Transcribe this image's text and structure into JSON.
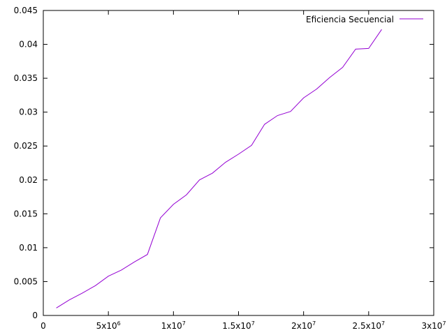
{
  "chart_data": {
    "type": "line",
    "title": "",
    "xlabel": "",
    "ylabel": "",
    "xlim": [
      0,
      30000000
    ],
    "ylim": [
      0,
      0.045
    ],
    "grid": false,
    "legend_position": "top-right",
    "x_ticks": [
      {
        "value": 0,
        "label": "0",
        "mantissa": "0",
        "exp": ""
      },
      {
        "value": 5000000,
        "label": "5x10^6",
        "mantissa": "5x10",
        "exp": "6"
      },
      {
        "value": 10000000,
        "label": "1x10^7",
        "mantissa": "1x10",
        "exp": "7"
      },
      {
        "value": 15000000,
        "label": "1.5x10^7",
        "mantissa": "1.5x10",
        "exp": "7"
      },
      {
        "value": 20000000,
        "label": "2x10^7",
        "mantissa": "2x10",
        "exp": "7"
      },
      {
        "value": 25000000,
        "label": "2.5x10^7",
        "mantissa": "2.5x10",
        "exp": "7"
      },
      {
        "value": 30000000,
        "label": "3x10^7",
        "mantissa": "3x10",
        "exp": "7"
      }
    ],
    "y_ticks": [
      {
        "value": 0,
        "label": "0"
      },
      {
        "value": 0.005,
        "label": "0.005"
      },
      {
        "value": 0.01,
        "label": "0.01"
      },
      {
        "value": 0.015,
        "label": "0.015"
      },
      {
        "value": 0.02,
        "label": "0.02"
      },
      {
        "value": 0.025,
        "label": "0.025"
      },
      {
        "value": 0.03,
        "label": "0.03"
      },
      {
        "value": 0.035,
        "label": "0.035"
      },
      {
        "value": 0.04,
        "label": "0.04"
      },
      {
        "value": 0.045,
        "label": "0.045"
      }
    ],
    "series": [
      {
        "name": "Eficiencia Secuencial",
        "color": "#9400d3",
        "x": [
          1000000,
          2000000,
          3000000,
          4000000,
          5000000,
          6000000,
          7000000,
          8000000,
          9000000,
          10000000,
          11000000,
          12000000,
          13000000,
          14000000,
          15000000,
          16000000,
          17000000,
          18000000,
          19000000,
          20000000,
          21000000,
          22000000,
          23000000,
          24000000,
          25000000,
          26000000
        ],
        "y": [
          0.0011,
          0.0023,
          0.0033,
          0.0044,
          0.0058,
          0.0067,
          0.0079,
          0.009,
          0.0144,
          0.0164,
          0.0178,
          0.02,
          0.021,
          0.0226,
          0.0238,
          0.0251,
          0.0282,
          0.0295,
          0.0301,
          0.0321,
          0.0334,
          0.0351,
          0.0366,
          0.0393,
          0.0394,
          0.0422
        ]
      }
    ]
  }
}
